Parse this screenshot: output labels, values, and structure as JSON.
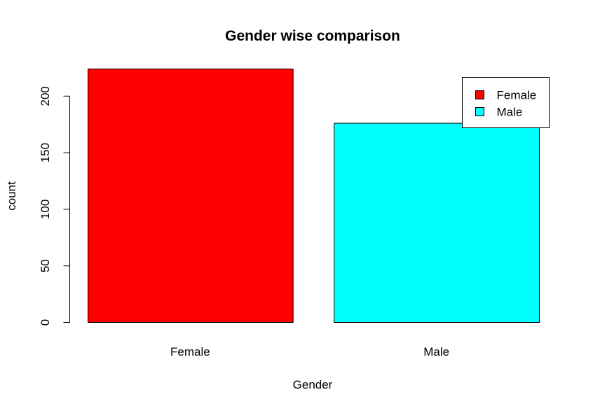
{
  "chart_data": {
    "type": "bar",
    "title": "Gender wise comparison",
    "xlabel": "Gender",
    "ylabel": "count",
    "categories": [
      "Female",
      "Male"
    ],
    "values": [
      224,
      176
    ],
    "colors": [
      "#ff0000",
      "#00ffff"
    ],
    "ylim": [
      0,
      224
    ],
    "yticks": [
      0,
      50,
      100,
      150,
      200
    ],
    "legend": {
      "placement": "top-right",
      "entries": [
        {
          "label": "Female",
          "color": "#ff0000"
        },
        {
          "label": "Male",
          "color": "#00ffff"
        }
      ]
    },
    "grid": false
  }
}
